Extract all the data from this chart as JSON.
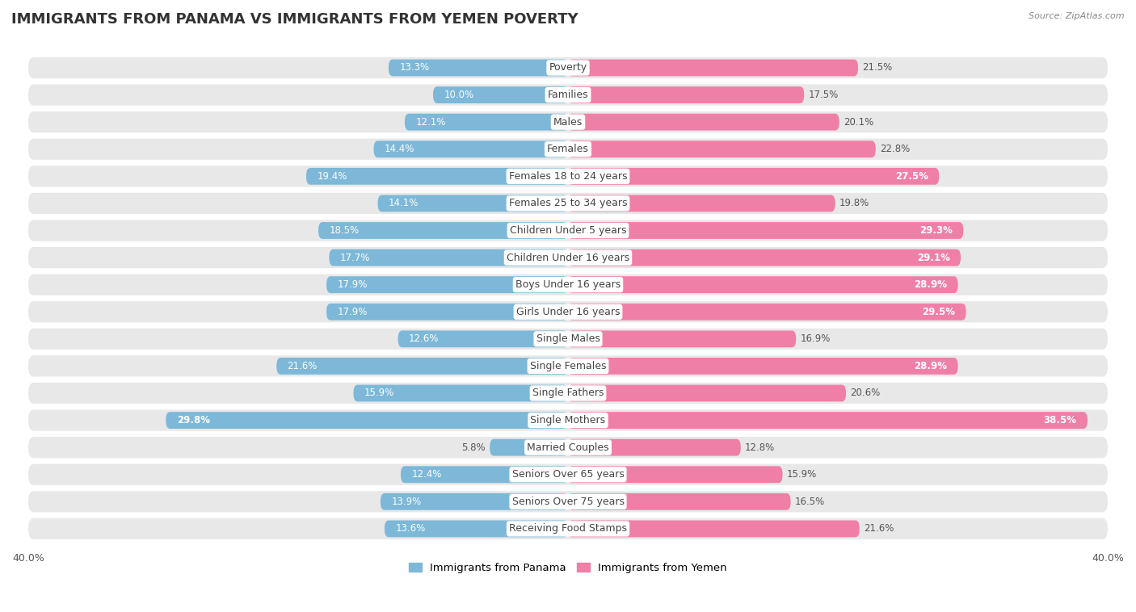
{
  "title": "IMMIGRANTS FROM PANAMA VS IMMIGRANTS FROM YEMEN POVERTY",
  "source": "Source: ZipAtlas.com",
  "categories": [
    "Poverty",
    "Families",
    "Males",
    "Females",
    "Females 18 to 24 years",
    "Females 25 to 34 years",
    "Children Under 5 years",
    "Children Under 16 years",
    "Boys Under 16 years",
    "Girls Under 16 years",
    "Single Males",
    "Single Females",
    "Single Fathers",
    "Single Mothers",
    "Married Couples",
    "Seniors Over 65 years",
    "Seniors Over 75 years",
    "Receiving Food Stamps"
  ],
  "panama_values": [
    13.3,
    10.0,
    12.1,
    14.4,
    19.4,
    14.1,
    18.5,
    17.7,
    17.9,
    17.9,
    12.6,
    21.6,
    15.9,
    29.8,
    5.8,
    12.4,
    13.9,
    13.6
  ],
  "yemen_values": [
    21.5,
    17.5,
    20.1,
    22.8,
    27.5,
    19.8,
    29.3,
    29.1,
    28.9,
    29.5,
    16.9,
    28.9,
    20.6,
    38.5,
    12.8,
    15.9,
    16.5,
    21.6
  ],
  "panama_color": "#7db8d8",
  "yemen_color": "#f07fa8",
  "panama_label": "Immigrants from Panama",
  "yemen_label": "Immigrants from Yemen",
  "x_max": 40.0,
  "background_color": "#ffffff",
  "row_bg_color": "#e8e8e8",
  "title_fontsize": 13,
  "label_fontsize": 9,
  "value_fontsize": 8.5,
  "axis_label_fontsize": 9
}
